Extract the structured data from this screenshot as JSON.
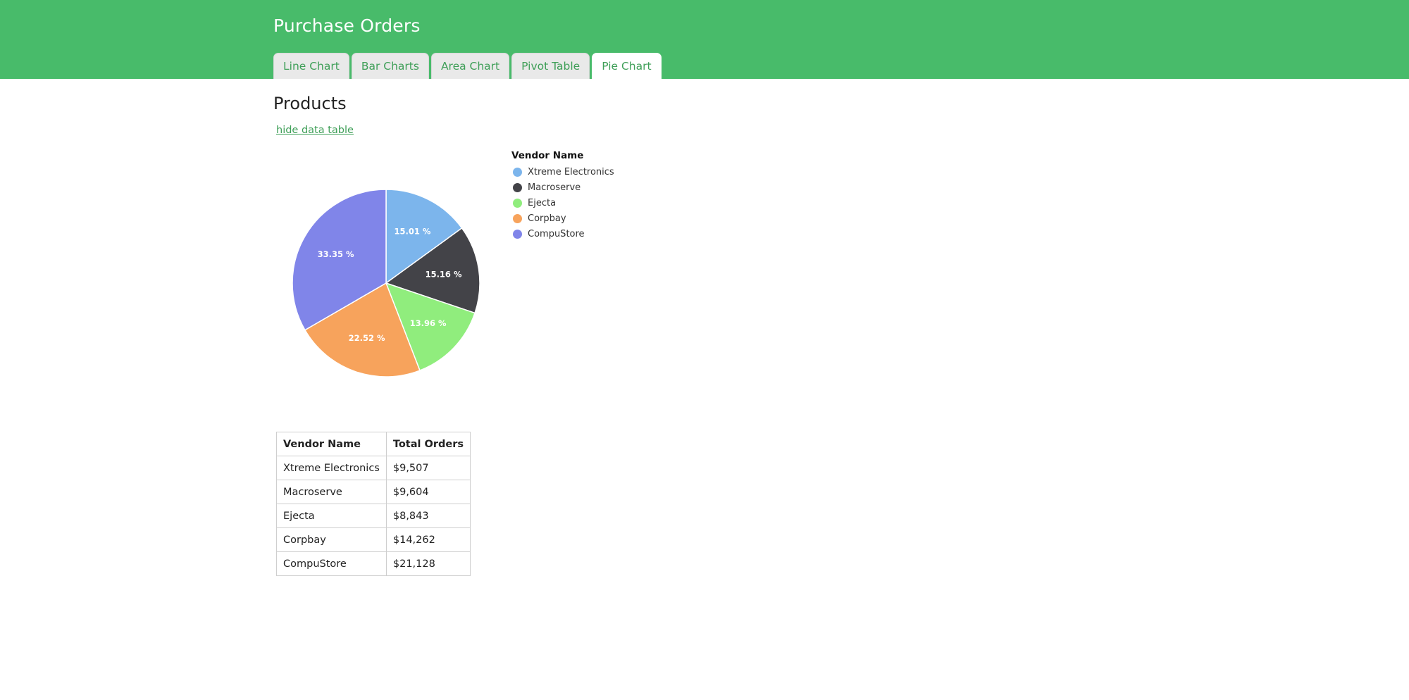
{
  "header": {
    "title": "Purchase Orders",
    "tabs": [
      {
        "label": "Line Chart",
        "active": false
      },
      {
        "label": "Bar Charts",
        "active": false
      },
      {
        "label": "Area Chart",
        "active": false
      },
      {
        "label": "Pivot Table",
        "active": false
      },
      {
        "label": "Pie Chart",
        "active": true
      }
    ]
  },
  "main": {
    "title": "Products",
    "toggle_link": "hide data table"
  },
  "chart_data": {
    "type": "pie",
    "legend_title": "Vendor Name",
    "legend_position": "right",
    "categories": [
      "Xtreme Electronics",
      "Macroserve",
      "Ejecta",
      "Corpbay",
      "CompuStore"
    ],
    "values": [
      9507,
      9604,
      8843,
      14262,
      21128
    ],
    "labels": [
      "15.01 %",
      "15.16 %",
      "13.96 %",
      "22.52 %",
      "33.35 %"
    ],
    "colors": [
      "#7cb5ec",
      "#434348",
      "#90ed7d",
      "#f7a35c",
      "#8085e9"
    ]
  },
  "table": {
    "headers": [
      "Vendor Name",
      "Total Orders"
    ],
    "rows": [
      [
        "Xtreme Electronics",
        "$9,507"
      ],
      [
        "Macroserve",
        "$9,604"
      ],
      [
        "Ejecta",
        "$8,843"
      ],
      [
        "Corpbay",
        "$14,262"
      ],
      [
        "CompuStore",
        "$21,128"
      ]
    ]
  }
}
